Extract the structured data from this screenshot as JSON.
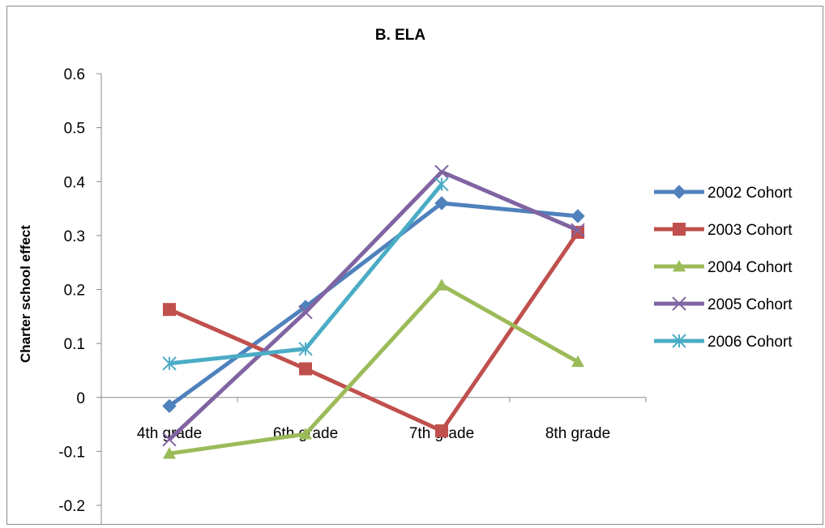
{
  "chart_data": {
    "type": "line",
    "title": "B. ELA",
    "xlabel": "",
    "ylabel": "Charter school effect",
    "categories": [
      "4th grade",
      "6th grade",
      "7th grade",
      "8th grade"
    ],
    "ylim": [
      -0.2,
      0.6
    ],
    "yticks": [
      -0.2,
      -0.1,
      0,
      0.1,
      0.2,
      0.3,
      0.4,
      0.5,
      0.6
    ],
    "grid": false,
    "legend_position": "right",
    "series": [
      {
        "name": "2002 Cohort",
        "color": "#4F81BD",
        "marker": "diamond",
        "values": [
          -0.016,
          0.168,
          0.36,
          0.336
        ]
      },
      {
        "name": "2003 Cohort",
        "color": "#C0504D",
        "marker": "square",
        "values": [
          0.163,
          0.053,
          -0.062,
          0.306
        ]
      },
      {
        "name": "2004 Cohort",
        "color": "#9BBB59",
        "marker": "triangle",
        "values": [
          -0.104,
          -0.068,
          0.208,
          0.066
        ]
      },
      {
        "name": "2005 Cohort",
        "color": "#8064A2",
        "marker": "x",
        "values": [
          -0.078,
          0.158,
          0.418,
          0.31
        ]
      },
      {
        "name": "2006 Cohort",
        "color": "#4BACC6",
        "marker": "star",
        "values": [
          0.063,
          0.09,
          0.395,
          null
        ]
      }
    ]
  }
}
